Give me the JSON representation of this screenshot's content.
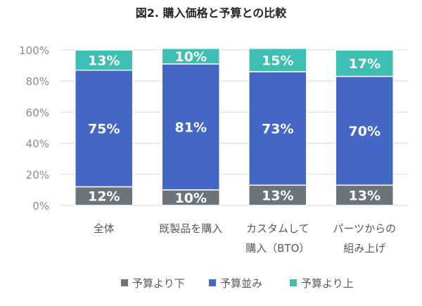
{
  "chart_data": {
    "type": "bar",
    "stacked": true,
    "title": "図2. 購入価格と予算との比較",
    "xlabel": "",
    "ylabel": "",
    "ylim": [
      0,
      100
    ],
    "yticks": [
      "0%",
      "20%",
      "40%",
      "60%",
      "80%",
      "100%"
    ],
    "ytick_values": [
      0,
      20,
      40,
      60,
      80,
      100
    ],
    "gridlines": true,
    "legend_position": "bottom",
    "categories": [
      [
        "全体"
      ],
      [
        "既製品を購入"
      ],
      [
        "カスタムして",
        "購入（BTO）"
      ],
      [
        "パーツからの",
        "組み上げ"
      ]
    ],
    "series": [
      {
        "name": "予算より下",
        "color": "#6b747a",
        "values": [
          12,
          10,
          13,
          13
        ],
        "labels": [
          "12%",
          "10%",
          "13%",
          "13%"
        ]
      },
      {
        "name": "予算並み",
        "color": "#4466c4",
        "values": [
          75,
          81,
          73,
          70
        ],
        "labels": [
          "75%",
          "81%",
          "73%",
          "70%"
        ]
      },
      {
        "name": "予算より上",
        "color": "#3fbfb3",
        "values": [
          13,
          10,
          15,
          17
        ],
        "labels": [
          "13%",
          "10%",
          "15%",
          "17%"
        ]
      }
    ]
  }
}
